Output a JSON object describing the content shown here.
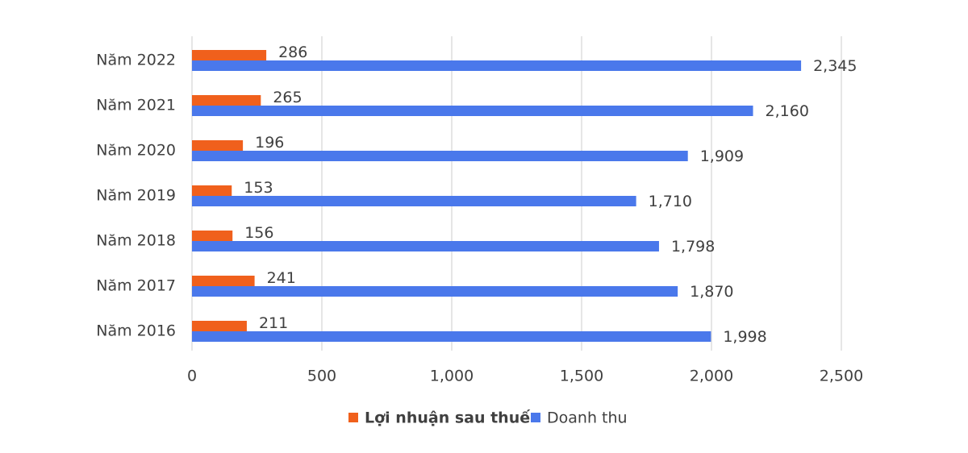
{
  "chart_data": {
    "type": "hbar",
    "categories": [
      "Năm 2022",
      "Năm 2021",
      "Năm 2020",
      "Năm 2019",
      "Năm 2018",
      "Năm 2017",
      "Năm 2016"
    ],
    "series": [
      {
        "name": "Lợi nhuận sau thuế",
        "color": "#f0601c",
        "values": [
          286,
          265,
          196,
          153,
          156,
          241,
          211
        ]
      },
      {
        "name": "Doanh thu",
        "color": "#4a78eb",
        "values": [
          2345,
          2160,
          1909,
          1710,
          1798,
          1870,
          1998
        ],
        "value_labels": [
          "2,345",
          "2,160",
          "1,909",
          "1,710",
          "1,798",
          "1,870",
          "1,998"
        ]
      }
    ],
    "xlim": [
      0,
      2500
    ],
    "xticks": [
      0,
      500,
      {
        "value": 1000,
        "label": "1,000"
      },
      {
        "value": 1500,
        "label": "1,500"
      },
      {
        "value": 2000,
        "label": "2,000"
      },
      {
        "value": 2500,
        "label": "2,500"
      }
    ],
    "grid": true,
    "legend": "bottom"
  }
}
